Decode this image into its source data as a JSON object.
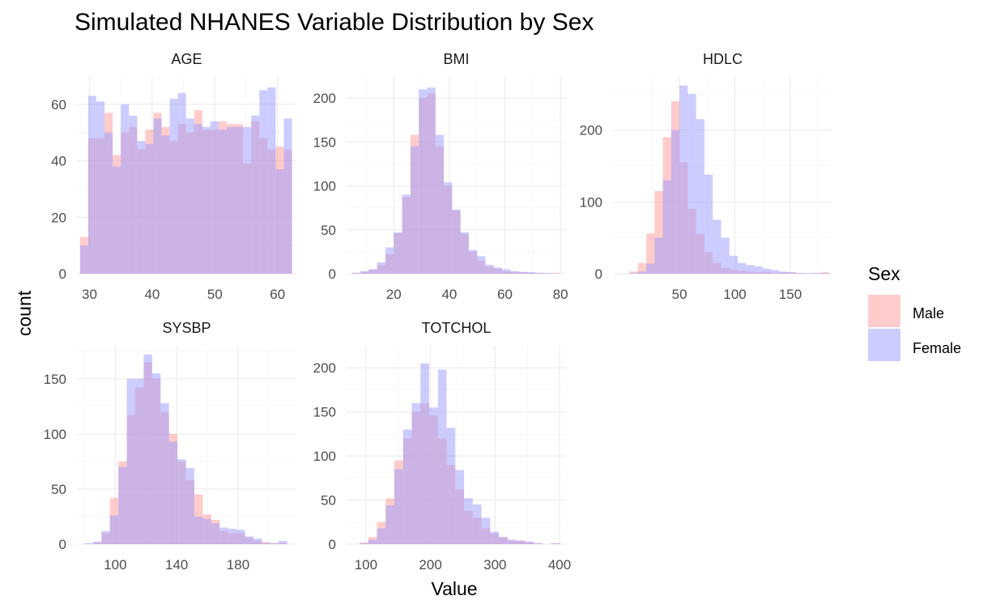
{
  "chart_data": {
    "type": "histogram",
    "title": "Simulated NHANES Variable Distribution by Sex",
    "xlabel": "Value",
    "ylabel": "count",
    "legend": {
      "title": "Sex",
      "position": "right",
      "entries": [
        {
          "name": "Male",
          "color": "#ff9999"
        },
        {
          "name": "Female",
          "color": "#9999ff"
        }
      ]
    },
    "grid": true,
    "bar_opacity": 0.5,
    "panels": [
      {
        "name": "AGE",
        "xlim": [
          28,
          63
        ],
        "ylim": [
          0,
          70
        ],
        "xticks": [
          30,
          40,
          50,
          60
        ],
        "yticks": [
          0,
          20,
          40,
          60
        ],
        "bins": [
          28.5,
          29.8,
          31.1,
          32.4,
          33.7,
          35,
          36.3,
          37.6,
          38.9,
          40.2,
          41.5,
          42.8,
          44.1,
          45.4,
          46.7,
          48,
          49.3,
          50.6,
          51.9,
          53.2,
          54.5,
          55.8,
          57.1,
          58.4,
          59.7,
          61,
          62.3
        ],
        "series": [
          {
            "name": "Male",
            "values": [
              13,
              48,
              48,
              57,
              42,
              50,
              52,
              44,
              51,
              57,
              52,
              47,
              53,
              50,
              58,
              51,
              51,
              54,
              53,
              53,
              39,
              54,
              48,
              44,
              45,
              44
            ]
          },
          {
            "name": "Female",
            "values": [
              10,
              63,
              61,
              50,
              38,
              60,
              56,
              47,
              46,
              55,
              49,
              62,
              64,
              55,
              53,
              52,
              54,
              51,
              52,
              52,
              52,
              56,
              65,
              66,
              37,
              55
            ]
          }
        ]
      },
      {
        "name": "BMI",
        "xlim": [
          3,
          82
        ],
        "ylim": [
          0,
          225
        ],
        "xticks": [
          20,
          40,
          60,
          80
        ],
        "yticks": [
          0,
          50,
          100,
          150,
          200
        ],
        "bins": [
          5,
          8,
          11,
          14,
          17,
          20,
          23,
          26,
          29,
          32,
          35,
          38,
          41,
          44,
          47,
          50,
          53,
          56,
          59,
          62,
          65,
          68,
          71,
          74,
          77,
          80
        ],
        "series": [
          {
            "name": "Male",
            "values": [
              1,
              2,
              5,
              10,
              22,
              46,
              87,
              158,
              200,
              205,
              145,
              100,
              72,
              45,
              25,
              15,
              8,
              6,
              3,
              2,
              2,
              1,
              1,
              0,
              1
            ]
          },
          {
            "name": "Female",
            "values": [
              1,
              3,
              5,
              13,
              30,
              47,
              90,
              145,
              210,
              212,
              158,
              104,
              73,
              47,
              27,
              20,
              10,
              7,
              5,
              3,
              2,
              2,
              1,
              1,
              0
            ]
          }
        ]
      },
      {
        "name": "HDLC",
        "xlim": [
          -10,
          188
        ],
        "ylim": [
          0,
          275
        ],
        "xticks": [
          50,
          100,
          150
        ],
        "yticks": [
          0,
          100,
          200
        ],
        "bins": [
          5,
          12.5,
          20,
          27.5,
          35,
          42.5,
          50,
          57.5,
          65,
          72.5,
          80,
          87.5,
          95,
          102.5,
          110,
          117.5,
          125,
          132.5,
          140,
          147.5,
          155,
          162.5,
          170,
          177.5,
          185
        ],
        "series": [
          {
            "name": "Male",
            "values": [
              3,
              15,
              56,
              115,
              190,
              240,
              155,
              90,
              55,
              30,
              15,
              8,
              6,
              4,
              3,
              2,
              3,
              1,
              2,
              2,
              1,
              0,
              1,
              2
            ]
          },
          {
            "name": "Female",
            "values": [
              1,
              3,
              14,
              50,
              130,
              200,
              262,
              250,
              215,
              138,
              75,
              50,
              25,
              15,
              12,
              10,
              7,
              5,
              3,
              2,
              1,
              1,
              1,
              1
            ]
          }
        ]
      },
      {
        "name": "SYSBP",
        "xlim": [
          75,
          218
        ],
        "ylim": [
          0,
          180
        ],
        "xticks": [
          100,
          140,
          180
        ],
        "yticks": [
          0,
          50,
          100,
          150
        ],
        "bins": [
          80,
          85.5,
          91,
          96.5,
          102,
          107.5,
          113,
          118.5,
          124,
          129.5,
          135,
          140.5,
          146,
          151.5,
          157,
          162.5,
          168,
          173.5,
          179,
          184.5,
          190,
          195.5,
          201,
          206.5,
          212
        ],
        "series": [
          {
            "name": "Male",
            "values": [
              0,
              2,
              10,
              42,
              75,
              117,
              142,
              165,
              150,
              120,
              100,
              75,
              58,
              45,
              27,
              22,
              12,
              10,
              10,
              6,
              3,
              2,
              1,
              1
            ]
          },
          {
            "name": "Female",
            "values": [
              1,
              2,
              12,
              26,
              70,
              150,
              150,
              172,
              155,
              128,
              93,
              77,
              69,
              25,
              23,
              19,
              15,
              14,
              13,
              7,
              5,
              1,
              1,
              3
            ]
          }
        ]
      },
      {
        "name": "TOTCHOL",
        "xlim": [
          70,
          410
        ],
        "ylim": [
          0,
          225
        ],
        "xticks": [
          100,
          200,
          300,
          400
        ],
        "yticks": [
          0,
          50,
          100,
          150,
          200
        ],
        "bins": [
          90,
          103.5,
          117,
          130.5,
          144,
          157.5,
          171,
          184.5,
          198,
          211.5,
          225,
          238.5,
          252,
          265.5,
          279,
          292.5,
          306,
          319.5,
          333,
          346.5,
          360,
          373.5,
          387,
          400.5
        ],
        "series": [
          {
            "name": "Male",
            "values": [
              2,
              8,
              25,
              52,
              95,
              120,
              150,
              160,
              146,
              120,
              90,
              62,
              38,
              30,
              18,
              12,
              8,
              4,
              4,
              2,
              1,
              0,
              1
            ]
          },
          {
            "name": "Female",
            "values": [
              1,
              5,
              18,
              44,
              85,
              130,
              160,
              205,
              155,
              198,
              132,
              84,
              52,
              45,
              30,
              14,
              8,
              5,
              4,
              3,
              1,
              0,
              1
            ]
          }
        ]
      }
    ]
  }
}
